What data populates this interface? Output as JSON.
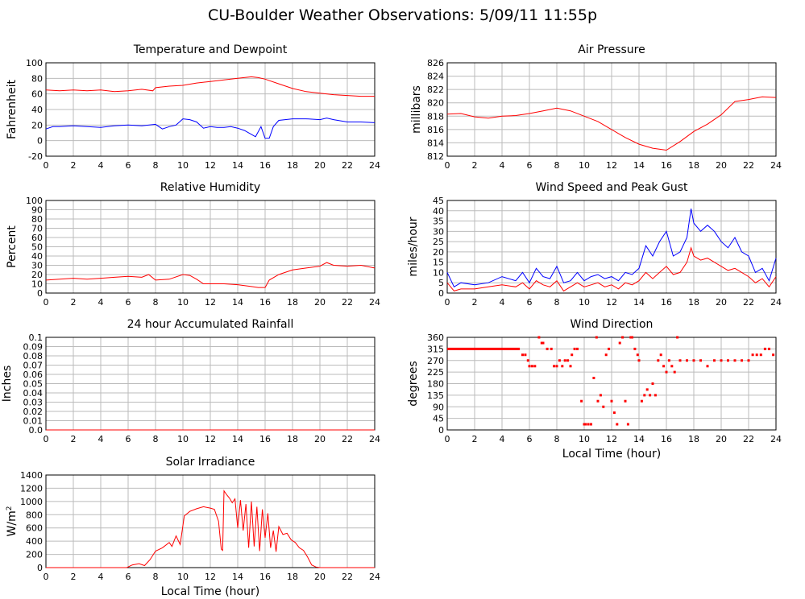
{
  "page_title": "CU-Boulder Weather Observations: 5/09/11 11:55p",
  "colors": {
    "red": "#ff0000",
    "blue": "#0000ff",
    "grid": "#bbbbbb",
    "axis": "#000000"
  },
  "chart_data": [
    {
      "id": "temp",
      "type": "line",
      "title": "Temperature and Dewpoint",
      "xlabel": "",
      "ylabel": "Fahrenheit",
      "xlim": [
        0,
        24
      ],
      "ylim": [
        -20,
        100
      ],
      "xticks": [
        0,
        2,
        4,
        6,
        8,
        10,
        12,
        14,
        16,
        18,
        20,
        22,
        24
      ],
      "yticks": [
        -20,
        0,
        20,
        40,
        60,
        80,
        100
      ],
      "grid": true,
      "series": [
        {
          "color": "#ff0000",
          "x": [
            0,
            1,
            2,
            3,
            4,
            5,
            6,
            7,
            7.8,
            8,
            9,
            10,
            11,
            12,
            13,
            14,
            15,
            15.5,
            16,
            17,
            18,
            19,
            20,
            21,
            22,
            23,
            24
          ],
          "y": [
            65,
            64,
            65,
            64,
            65,
            63,
            64,
            66,
            64,
            68,
            70,
            71,
            74,
            76,
            78,
            80,
            82,
            81,
            79,
            73,
            67,
            63,
            61,
            59,
            58,
            57,
            57
          ]
        },
        {
          "color": "#0000ff",
          "x": [
            0,
            0.5,
            1,
            2,
            3,
            4,
            5,
            6,
            7,
            8,
            8.5,
            9,
            9.5,
            10,
            10.5,
            11,
            11.5,
            12,
            12.5,
            13,
            13.5,
            14,
            14.5,
            15,
            15.3,
            15.7,
            16,
            16.3,
            16.6,
            17,
            18,
            19,
            20,
            20.5,
            21,
            22,
            23,
            24
          ],
          "y": [
            15,
            18,
            18,
            19,
            18,
            17,
            19,
            20,
            19,
            21,
            15,
            18,
            20,
            28,
            27,
            24,
            16,
            18,
            17,
            17,
            18,
            16,
            13,
            8,
            5,
            18,
            3,
            3,
            18,
            26,
            28,
            28,
            27,
            29,
            27,
            24,
            24,
            23
          ]
        }
      ]
    },
    {
      "id": "pressure",
      "type": "line",
      "title": "Air Pressure",
      "xlabel": "",
      "ylabel": "millibars",
      "xlim": [
        0,
        24
      ],
      "ylim": [
        812,
        826
      ],
      "xticks": [
        0,
        2,
        4,
        6,
        8,
        10,
        12,
        14,
        16,
        18,
        20,
        22,
        24
      ],
      "yticks": [
        812,
        814,
        816,
        818,
        820,
        822,
        824,
        826
      ],
      "grid": true,
      "series": [
        {
          "color": "#ff0000",
          "x": [
            0,
            1,
            2,
            3,
            4,
            5,
            6,
            7,
            8,
            9,
            10,
            11,
            12,
            13,
            14,
            15,
            16,
            17,
            18,
            19,
            20,
            21,
            22,
            23,
            24
          ],
          "y": [
            818.3,
            818.4,
            817.9,
            817.7,
            818.0,
            818.1,
            818.4,
            818.8,
            819.2,
            818.8,
            818.0,
            817.2,
            816.0,
            814.8,
            813.8,
            813.2,
            812.9,
            814.2,
            815.7,
            816.8,
            818.2,
            820.2,
            820.5,
            820.9,
            820.8
          ]
        }
      ]
    },
    {
      "id": "humidity",
      "type": "line",
      "title": "Relative Humidity",
      "xlabel": "",
      "ylabel": "Percent",
      "xlim": [
        0,
        24
      ],
      "ylim": [
        0,
        100
      ],
      "xticks": [
        0,
        2,
        4,
        6,
        8,
        10,
        12,
        14,
        16,
        18,
        20,
        22,
        24
      ],
      "yticks": [
        0,
        10,
        20,
        30,
        40,
        50,
        60,
        70,
        80,
        90,
        100
      ],
      "grid": true,
      "series": [
        {
          "color": "#ff0000",
          "x": [
            0,
            1,
            2,
            3,
            4,
            5,
            6,
            7,
            7.5,
            8,
            9,
            10,
            10.5,
            11,
            11.5,
            12,
            13,
            14,
            15,
            15.5,
            16,
            16.3,
            17,
            18,
            19,
            20,
            20.5,
            21,
            22,
            23,
            24
          ],
          "y": [
            14,
            15,
            16,
            15,
            16,
            17,
            18,
            17,
            20,
            14,
            15,
            20,
            19,
            15,
            10,
            10,
            10,
            9,
            7,
            6,
            6,
            14,
            20,
            25,
            27,
            29,
            33,
            30,
            29,
            30,
            27
          ]
        }
      ]
    },
    {
      "id": "wind",
      "type": "line",
      "title": "Wind Speed and Peak Gust",
      "xlabel": "",
      "ylabel": "miles/hour",
      "xlim": [
        0,
        24
      ],
      "ylim": [
        0,
        45
      ],
      "xticks": [
        0,
        2,
        4,
        6,
        8,
        10,
        12,
        14,
        16,
        18,
        20,
        22,
        24
      ],
      "yticks": [
        0,
        5,
        10,
        15,
        20,
        25,
        30,
        35,
        40,
        45
      ],
      "grid": true,
      "series": [
        {
          "color": "#0000ff",
          "x": [
            0,
            0.5,
            1,
            2,
            3,
            4,
            5,
            5.5,
            6,
            6.5,
            7,
            7.5,
            8,
            8.5,
            9,
            9.5,
            10,
            10.5,
            11,
            11.5,
            12,
            12.5,
            13,
            13.5,
            14,
            14.5,
            15,
            15.5,
            16,
            16.5,
            17,
            17.5,
            17.8,
            18,
            18.5,
            19,
            19.5,
            20,
            20.5,
            21,
            21.5,
            22,
            22.5,
            23,
            23.5,
            24
          ],
          "y": [
            10,
            3,
            5,
            4,
            5,
            8,
            6,
            10,
            5,
            12,
            8,
            7,
            13,
            5,
            6,
            10,
            6,
            8,
            9,
            7,
            8,
            6,
            10,
            9,
            12,
            23,
            18,
            25,
            30,
            18,
            20,
            27,
            41,
            34,
            30,
            33,
            30,
            25,
            22,
            27,
            20,
            18,
            10,
            12,
            6,
            17
          ]
        },
        {
          "color": "#ff0000",
          "x": [
            0,
            0.5,
            1,
            2,
            3,
            4,
            5,
            5.5,
            6,
            6.5,
            7,
            7.5,
            8,
            8.5,
            9,
            9.5,
            10,
            10.5,
            11,
            11.5,
            12,
            12.5,
            13,
            13.5,
            14,
            14.5,
            15,
            15.5,
            16,
            16.5,
            17,
            17.5,
            17.8,
            18,
            18.5,
            19,
            19.5,
            20,
            20.5,
            21,
            21.5,
            22,
            22.5,
            23,
            23.5,
            24
          ],
          "y": [
            5,
            1,
            2,
            2,
            3,
            4,
            3,
            5,
            2,
            6,
            4,
            3,
            6,
            1,
            3,
            5,
            3,
            4,
            5,
            3,
            4,
            2,
            5,
            4,
            6,
            10,
            7,
            10,
            13,
            9,
            10,
            15,
            22,
            18,
            16,
            17,
            15,
            13,
            11,
            12,
            10,
            8,
            5,
            7,
            3,
            8
          ]
        }
      ]
    },
    {
      "id": "rain",
      "type": "line",
      "title": "24 hour Accumulated Rainfall",
      "xlabel": "",
      "ylabel": "Inches",
      "xlim": [
        0,
        24
      ],
      "ylim": [
        0,
        0.1
      ],
      "xticks": [
        0,
        2,
        4,
        6,
        8,
        10,
        12,
        14,
        16,
        18,
        20,
        22,
        24
      ],
      "yticks": [
        0.0,
        0.01,
        0.02,
        0.03,
        0.04,
        0.05,
        0.06,
        0.07,
        0.08,
        0.09,
        0.1
      ],
      "ytick_labels": [
        "0.0",
        "0.01",
        "0.02",
        "0.03",
        "0.04",
        "0.05",
        "0.06",
        "0.07",
        "0.08",
        "0.09",
        "0.1"
      ],
      "grid": true,
      "series": [
        {
          "color": "#ff0000",
          "x": [
            0,
            24
          ],
          "y": [
            0,
            0
          ]
        }
      ]
    },
    {
      "id": "direction",
      "type": "scatter",
      "title": "Wind Direction",
      "xlabel": "Local Time (hour)",
      "ylabel": "degrees",
      "xlim": [
        0,
        24
      ],
      "ylim": [
        0,
        360
      ],
      "xticks": [
        0,
        2,
        4,
        6,
        8,
        10,
        12,
        14,
        16,
        18,
        20,
        22,
        24
      ],
      "yticks": [
        0,
        45,
        90,
        135,
        180,
        225,
        270,
        315,
        360
      ],
      "grid": true,
      "series": [
        {
          "color": "#ff0000",
          "x": [
            5.5,
            5.7,
            5.9,
            6.0,
            6.2,
            6.4,
            6.7,
            6.9,
            7.0,
            7.3,
            7.6,
            7.8,
            8.0,
            8.2,
            8.4,
            8.6,
            8.8,
            9.0,
            9.1,
            9.3,
            9.5,
            9.8,
            10.0,
            10.1,
            10.3,
            10.5,
            10.7,
            10.9,
            11.0,
            11.2,
            11.4,
            11.6,
            11.8,
            12.0,
            12.2,
            12.4,
            12.6,
            12.8,
            13.0,
            13.2,
            13.4,
            13.5,
            13.7,
            13.9,
            14.0,
            14.2,
            14.4,
            14.6,
            14.8,
            15.0,
            15.2,
            15.4,
            15.6,
            15.8,
            16.0,
            16.2,
            16.4,
            16.6,
            16.8,
            17.0,
            17.5,
            18.0,
            18.5,
            19.0,
            19.5,
            20.0,
            20.5,
            21.0,
            21.5,
            22.0,
            22.3,
            22.6,
            22.9,
            23.2,
            23.5,
            23.8
          ],
          "y": [
            292,
            292,
            270,
            248,
            248,
            248,
            360,
            338,
            338,
            315,
            315,
            248,
            248,
            270,
            248,
            270,
            270,
            248,
            292,
            315,
            315,
            112,
            22,
            22,
            22,
            22,
            202,
            360,
            112,
            135,
            90,
            292,
            315,
            112,
            67,
            22,
            338,
            360,
            112,
            22,
            360,
            360,
            315,
            292,
            270,
            112,
            135,
            157,
            135,
            180,
            135,
            270,
            292,
            248,
            225,
            270,
            248,
            225,
            360,
            270,
            270,
            270,
            270,
            248,
            270,
            270,
            270,
            270,
            270,
            270,
            292,
            292,
            292,
            315,
            315,
            292
          ]
        }
      ],
      "baseline": {
        "x": [
          0,
          5.3
        ],
        "y": [
          315,
          315
        ]
      }
    },
    {
      "id": "solar",
      "type": "line",
      "title": "Solar Irradiance",
      "xlabel": "Local Time (hour)",
      "ylabel": "W/m",
      "ylabel_sup": "2",
      "xlim": [
        0,
        24
      ],
      "ylim": [
        0,
        1400
      ],
      "xticks": [
        0,
        2,
        4,
        6,
        8,
        10,
        12,
        14,
        16,
        18,
        20,
        22,
        24
      ],
      "yticks": [
        0,
        200,
        400,
        600,
        800,
        1000,
        1200,
        1400
      ],
      "grid": true,
      "series": [
        {
          "color": "#ff0000",
          "x": [
            0,
            5.9,
            6.3,
            6.8,
            7.2,
            7.6,
            8.0,
            8.5,
            9.0,
            9.2,
            9.5,
            9.8,
            10.1,
            10.5,
            11.0,
            11.5,
            12.0,
            12.3,
            12.6,
            12.8,
            12.9,
            13.0,
            13.2,
            13.4,
            13.6,
            13.8,
            14.0,
            14.2,
            14.4,
            14.6,
            14.8,
            15.0,
            15.2,
            15.4,
            15.6,
            15.8,
            16.0,
            16.2,
            16.4,
            16.6,
            16.8,
            17.0,
            17.3,
            17.6,
            17.9,
            18.2,
            18.5,
            18.8,
            19.1,
            19.4,
            19.7,
            20.0,
            24
          ],
          "y": [
            0,
            0,
            40,
            60,
            30,
            120,
            250,
            300,
            380,
            320,
            480,
            350,
            780,
            850,
            890,
            920,
            900,
            880,
            700,
            280,
            260,
            1160,
            1100,
            1050,
            980,
            1040,
            600,
            1020,
            560,
            960,
            300,
            1000,
            320,
            920,
            250,
            880,
            450,
            820,
            300,
            560,
            240,
            620,
            500,
            520,
            420,
            380,
            300,
            260,
            160,
            40,
            10,
            0,
            0
          ]
        }
      ]
    }
  ]
}
